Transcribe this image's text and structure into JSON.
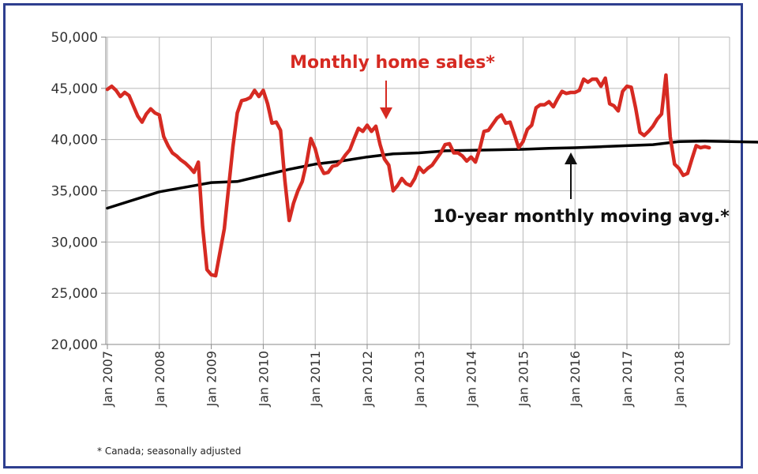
{
  "chart_data": {
    "type": "line",
    "title": "",
    "xlabel": "",
    "ylabel": "",
    "x_start": "Jan 2007",
    "x_ticks": [
      "Jan 2007",
      "Jan 2008",
      "Jan 2009",
      "Jan 2010",
      "Jan 2011",
      "Jan 2012",
      "Jan 2013",
      "Jan 2014",
      "Jan 2015",
      "Jan 2016",
      "Jan 2017",
      "Jan 2018"
    ],
    "ylim": [
      20000,
      50000
    ],
    "y_ticks": [
      20000,
      25000,
      30000,
      35000,
      40000,
      45000,
      50000
    ],
    "y_tick_labels": [
      "20,000",
      "25,000",
      "30,000",
      "35,000",
      "40,000",
      "45,000",
      "50,000"
    ],
    "grid": true,
    "series": [
      {
        "name": "Monthly home sales*",
        "color": "#d62a22",
        "monthly_values": [
          44900,
          45200,
          44800,
          44200,
          44600,
          44300,
          43300,
          42300,
          41700,
          42500,
          43000,
          42600,
          42400,
          40300,
          39400,
          38700,
          38400,
          38000,
          37700,
          37300,
          36800,
          37800,
          31500,
          27300,
          26800,
          26700,
          29000,
          31300,
          35300,
          39300,
          42600,
          43800,
          43900,
          44100,
          44800,
          44200,
          44800,
          43500,
          41600,
          41700,
          40900,
          36000,
          32100,
          33800,
          35000,
          35900,
          37700,
          40100,
          39100,
          37500,
          36700,
          36800,
          37400,
          37500,
          37900,
          38500,
          39000,
          40100,
          41100,
          40800,
          41400,
          40800,
          41300,
          39500,
          38100,
          37500,
          35000,
          35500,
          36200,
          35700,
          35500,
          36200,
          37300,
          36800,
          37200,
          37500,
          38100,
          38700,
          39500,
          39600,
          38700,
          38700,
          38400,
          37900,
          38300,
          37800,
          39100,
          40800,
          40900,
          41500,
          42100,
          42400,
          41600,
          41700,
          40500,
          39200,
          39800,
          41000,
          41400,
          43100,
          43400,
          43400,
          43700,
          43200,
          44000,
          44700,
          44500,
          44600,
          44600,
          44800,
          45900,
          45600,
          45900,
          45900,
          45200,
          46000,
          43500,
          43300,
          42800,
          44700,
          45200,
          45100,
          43100,
          40700,
          40400,
          40800,
          41300,
          42000,
          42500,
          46300,
          40300,
          37600,
          37200,
          36500,
          36700,
          38100,
          39400,
          39200,
          39300,
          39200
        ]
      },
      {
        "name": "10-year monthly moving avg.*",
        "color": "#000000",
        "anchors": [
          [
            0,
            33300
          ],
          [
            12,
            34900
          ],
          [
            24,
            35800
          ],
          [
            30,
            35900
          ],
          [
            36,
            36500
          ],
          [
            42,
            37100
          ],
          [
            48,
            37600
          ],
          [
            54,
            37900
          ],
          [
            60,
            38300
          ],
          [
            66,
            38600
          ],
          [
            72,
            38700
          ],
          [
            78,
            38900
          ],
          [
            84,
            38950
          ],
          [
            90,
            39000
          ],
          [
            96,
            39050
          ],
          [
            102,
            39150
          ],
          [
            108,
            39200
          ],
          [
            114,
            39300
          ],
          [
            120,
            39400
          ],
          [
            126,
            39500
          ],
          [
            132,
            39800
          ],
          [
            138,
            39850
          ],
          [
            144,
            39800
          ],
          [
            150,
            39750
          ],
          [
            153,
            39700
          ]
        ]
      }
    ],
    "annotations": [
      {
        "text": "Monthly home sales*",
        "color": "#d62a22"
      },
      {
        "text": "10-year monthly moving avg.*",
        "color": "#111111"
      }
    ]
  },
  "footnote": "* Canada; seasonally adjusted"
}
